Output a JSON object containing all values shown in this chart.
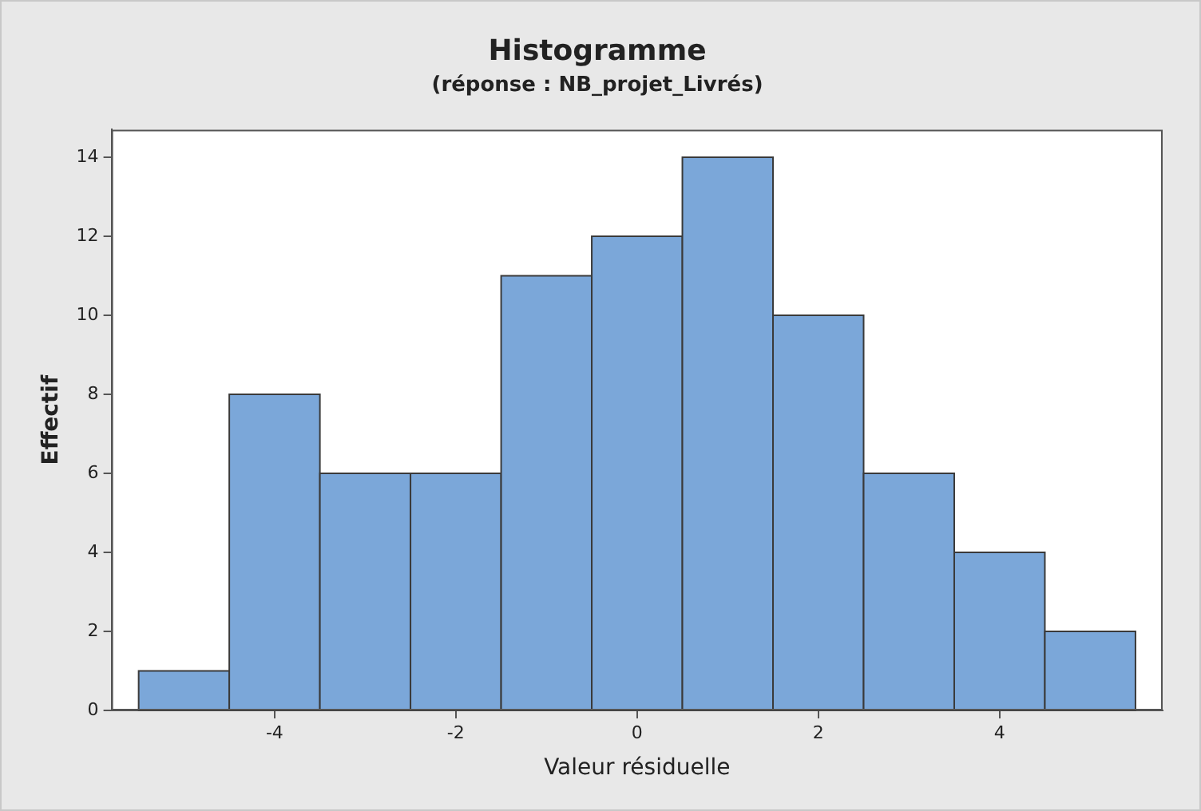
{
  "chart_data": {
    "type": "histogram",
    "title": "Histogramme",
    "subtitle": "(réponse : NB_projet_Livrés)",
    "xlabel": "Valeur résiduelle",
    "ylabel": "Effectif",
    "bins": [
      -5.5,
      -4.5,
      -3.5,
      -2.5,
      -1.5,
      -0.5,
      0.5,
      1.5,
      2.5,
      3.5,
      4.5,
      5.5
    ],
    "values": [
      1,
      8,
      6,
      6,
      11,
      12,
      14,
      10,
      6,
      4,
      2
    ],
    "color": "#7ba7d9",
    "xlim": [
      -5.8,
      5.8
    ],
    "xticks": [
      -4,
      -2,
      0,
      2,
      4
    ],
    "ylim": [
      0,
      14.7
    ],
    "yticks": [
      0,
      2,
      4,
      6,
      8,
      10,
      12,
      14
    ],
    "grid": false,
    "legend": false
  }
}
